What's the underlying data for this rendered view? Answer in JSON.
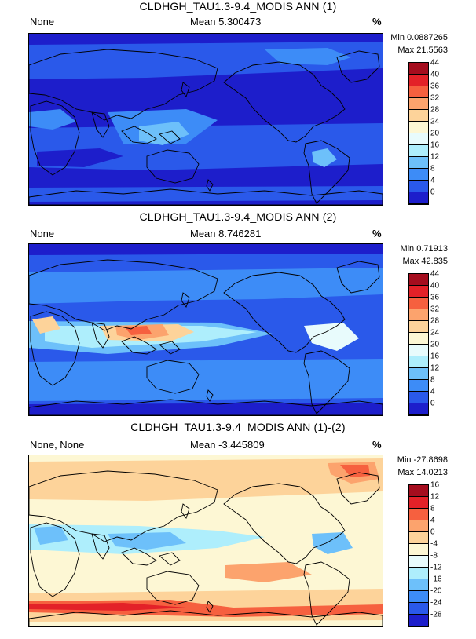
{
  "panels": [
    {
      "title": "CLDHGH_TAU1.3-9.4_MODIS ANN (1)",
      "left_label": "None",
      "mean_label": "Mean 5.300473",
      "unit": "%",
      "min_label": "Min 0.0887265",
      "max_label": "Max 21.5563",
      "colorbar": {
        "ticks": [
          "44",
          "40",
          "36",
          "32",
          "28",
          "24",
          "20",
          "16",
          "12",
          "8",
          "4",
          "0"
        ],
        "colors": [
          "#a50d1e",
          "#e32128",
          "#f6603f",
          "#fca36d",
          "#fdd39a",
          "#fdf7d4",
          "#e8fbfc",
          "#aeeefc",
          "#6dc0fa",
          "#3d8cf7",
          "#2a59ea",
          "#1d1ecb"
        ]
      },
      "map_theme": "abs1"
    },
    {
      "title": "CLDHGH_TAU1.3-9.4_MODIS ANN (2)",
      "left_label": "None",
      "mean_label": "Mean 8.746281",
      "unit": "%",
      "min_label": "Min 0.71913",
      "max_label": "Max 42.835",
      "colorbar": {
        "ticks": [
          "44",
          "40",
          "36",
          "32",
          "28",
          "24",
          "20",
          "16",
          "12",
          "8",
          "4",
          "0"
        ],
        "colors": [
          "#a50d1e",
          "#e32128",
          "#f6603f",
          "#fca36d",
          "#fdd39a",
          "#fdf7d4",
          "#e8fbfc",
          "#aeeefc",
          "#6dc0fa",
          "#3d8cf7",
          "#2a59ea",
          "#1d1ecb"
        ]
      },
      "map_theme": "abs2"
    },
    {
      "title": "CLDHGH_TAU1.3-9.4_MODIS ANN (1)-(2)",
      "left_label": "None, None",
      "mean_label": "Mean -3.445809",
      "unit": "%",
      "min_label": "Min -27.8698",
      "max_label": "Max 14.0213",
      "colorbar": {
        "ticks": [
          "16",
          "12",
          "8",
          "4",
          "0",
          "-4",
          "-8",
          "-12",
          "-16",
          "-20",
          "-24",
          "-28"
        ],
        "colors": [
          "#a50d1e",
          "#e32128",
          "#f6603f",
          "#fca36d",
          "#fdd39a",
          "#fdf7d4",
          "#e8fbfc",
          "#aeeefc",
          "#6dc0fa",
          "#3d8cf7",
          "#2a59ea",
          "#1d1ecb"
        ]
      },
      "map_theme": "diff"
    }
  ]
}
